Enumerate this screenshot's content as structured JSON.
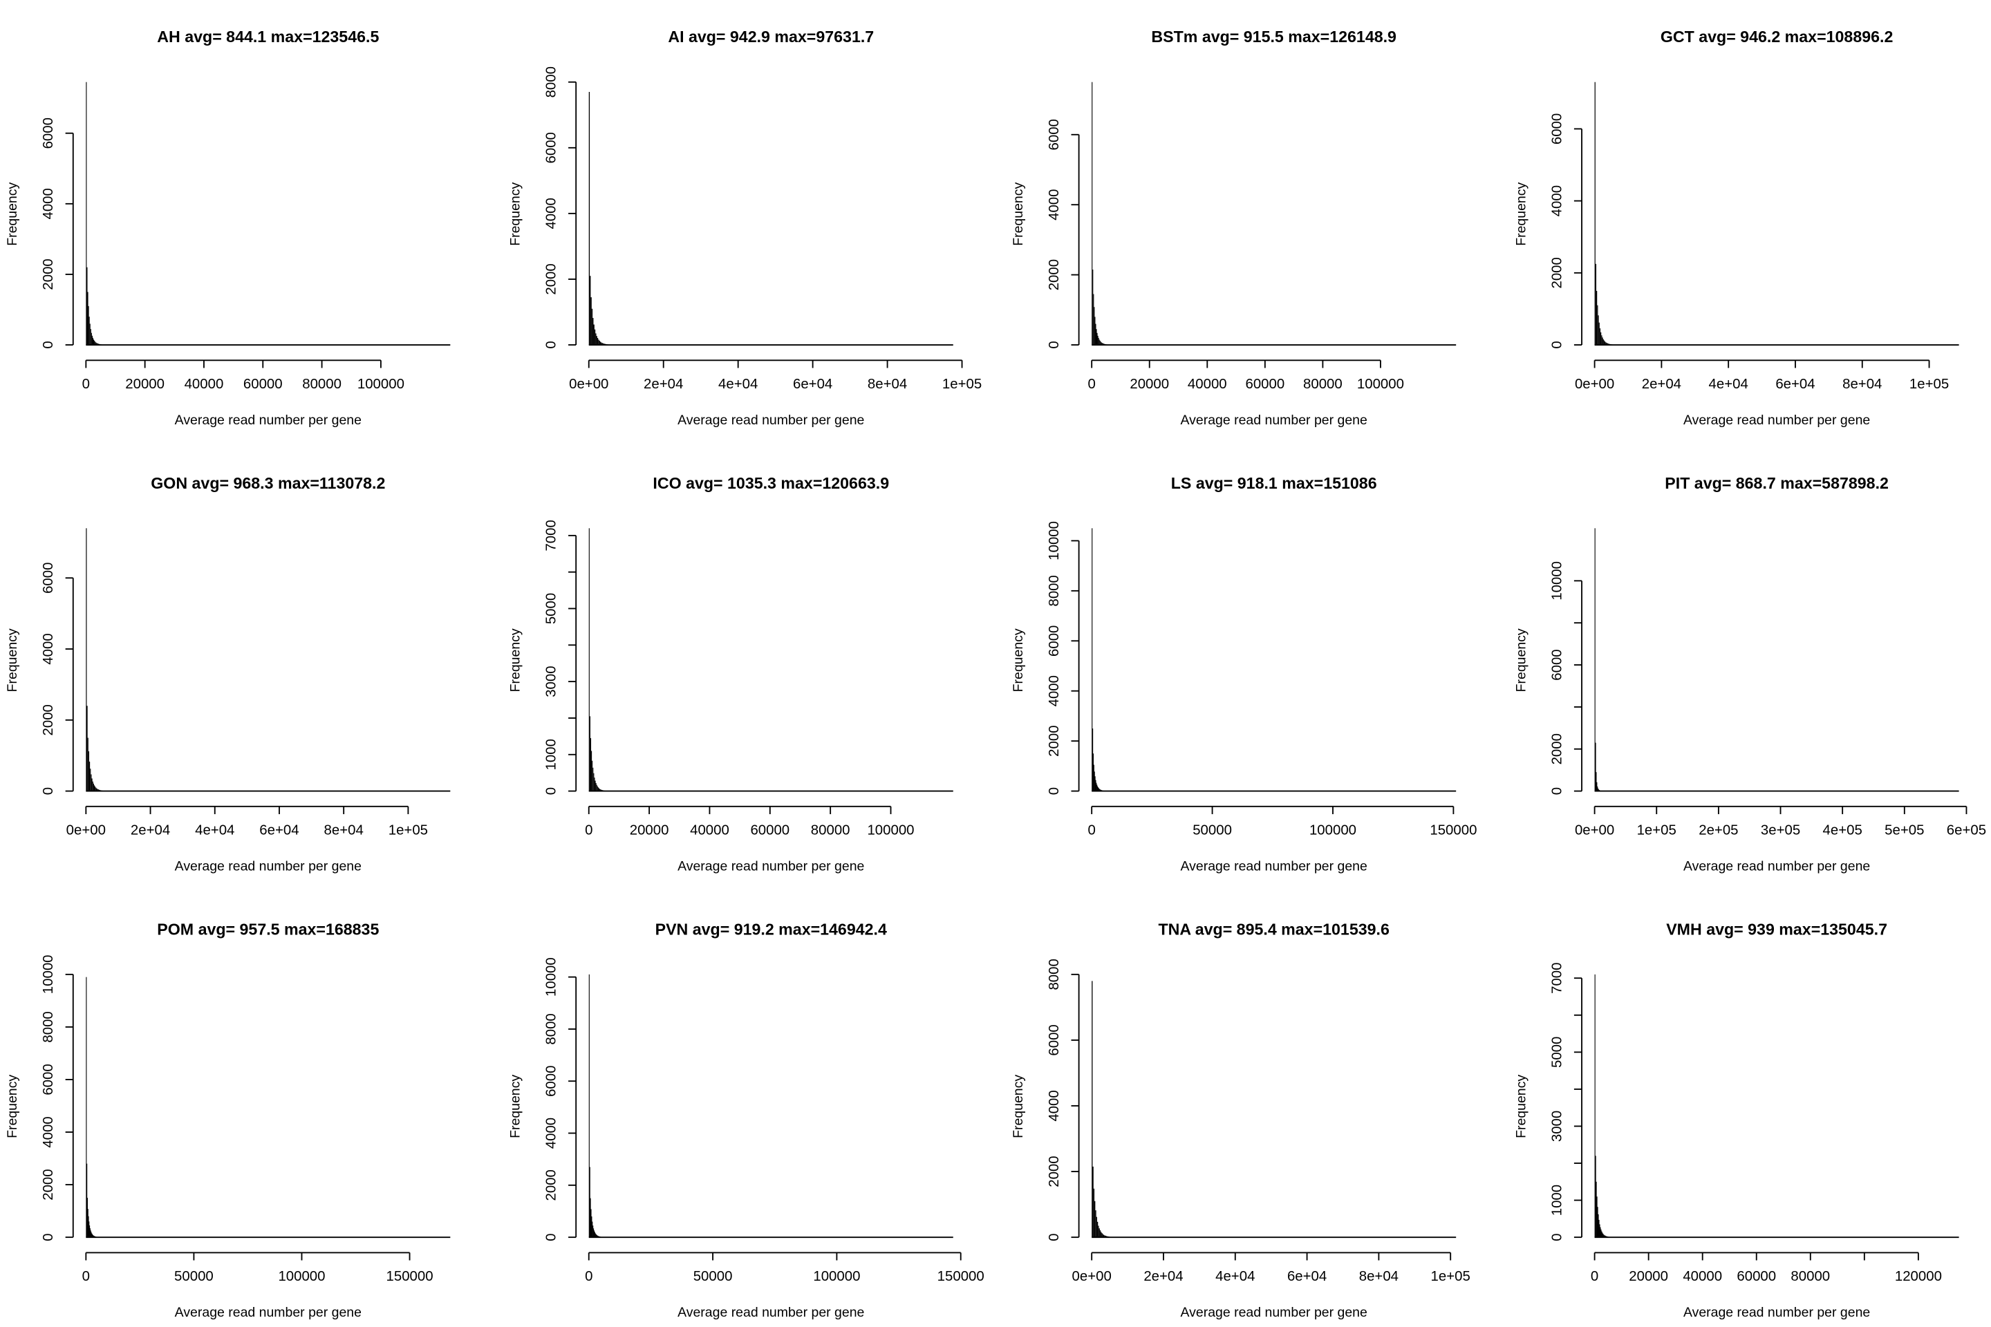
{
  "chart_data": [
    {
      "type": "bar",
      "title": "AH avg= 844.1 max=123546.5",
      "xlabel": "Average read number per gene",
      "ylabel": "Frequency",
      "xlim": [
        0,
        123546.5
      ],
      "bin_width": 250,
      "xticks": [
        0,
        20000,
        40000,
        60000,
        80000,
        100000
      ],
      "xtick_labels": [
        "0",
        "20000",
        "40000",
        "60000",
        "80000",
        "100000"
      ],
      "yticks": [
        0,
        2000,
        4000,
        6000
      ],
      "ytick_labels": [
        "0",
        "2000",
        "4000",
        "6000"
      ],
      "counts": [
        7450,
        2200,
        1500,
        1100,
        800,
        600,
        450,
        340,
        260,
        200,
        150,
        120,
        90,
        70,
        55,
        45,
        35,
        28,
        22,
        18,
        14,
        11,
        9,
        7,
        5,
        4,
        3,
        2,
        2,
        1
      ]
    },
    {
      "type": "bar",
      "title": "AI avg= 942.9 max=97631.7",
      "xlabel": "Average read number per gene",
      "ylabel": "Frequency",
      "xlim": [
        0,
        97631.7
      ],
      "bin_width": 250,
      "xticks": [
        0,
        20000,
        40000,
        60000,
        80000,
        100000
      ],
      "xtick_labels": [
        "0e+00",
        "2e+04",
        "4e+04",
        "6e+04",
        "8e+04",
        "1e+05"
      ],
      "yticks": [
        0,
        2000,
        4000,
        6000,
        8000
      ],
      "ytick_labels": [
        "0",
        "2000",
        "4000",
        "6000",
        "8000"
      ],
      "counts": [
        7700,
        2100,
        1450,
        1100,
        820,
        620,
        470,
        350,
        270,
        210,
        160,
        125,
        95,
        72,
        56,
        46,
        36,
        29,
        23,
        18,
        14,
        11,
        9,
        7,
        5,
        4,
        3,
        2,
        2,
        1
      ]
    },
    {
      "type": "bar",
      "title": "BSTm avg= 915.5 max=126148.9",
      "xlabel": "Average read number per gene",
      "ylabel": "Frequency",
      "xlim": [
        0,
        126148.9
      ],
      "bin_width": 250,
      "xticks": [
        0,
        20000,
        40000,
        60000,
        80000,
        100000
      ],
      "xtick_labels": [
        "0",
        "20000",
        "40000",
        "60000",
        "80000",
        "100000"
      ],
      "yticks": [
        0,
        2000,
        4000,
        6000
      ],
      "ytick_labels": [
        "0",
        "2000",
        "4000",
        "6000"
      ],
      "counts": [
        7500,
        2150,
        1450,
        1080,
        800,
        600,
        450,
        340,
        260,
        200,
        150,
        120,
        90,
        70,
        55,
        45,
        35,
        28,
        22,
        18,
        14,
        11,
        9,
        7,
        5,
        4,
        3,
        2,
        2,
        1
      ]
    },
    {
      "type": "bar",
      "title": "GCT avg= 946.2 max=108896.2",
      "xlabel": "Average read number per gene",
      "ylabel": "Frequency",
      "xlim": [
        0,
        108896.2
      ],
      "bin_width": 250,
      "xticks": [
        0,
        20000,
        40000,
        60000,
        80000,
        100000
      ],
      "xtick_labels": [
        "0e+00",
        "2e+04",
        "4e+04",
        "6e+04",
        "8e+04",
        "1e+05"
      ],
      "yticks": [
        0,
        2000,
        4000,
        6000
      ],
      "ytick_labels": [
        "0",
        "2000",
        "4000",
        "6000"
      ],
      "counts": [
        7300,
        2250,
        1500,
        1100,
        820,
        620,
        460,
        350,
        265,
        205,
        155,
        122,
        92,
        71,
        55,
        45,
        35,
        28,
        22,
        18,
        14,
        11,
        9,
        7,
        5,
        4,
        3,
        2,
        2,
        1
      ]
    },
    {
      "type": "bar",
      "title": "GON avg= 968.3 max=113078.2",
      "xlabel": "Average read number per gene",
      "ylabel": "Frequency",
      "xlim": [
        0,
        113078.2
      ],
      "bin_width": 250,
      "xticks": [
        0,
        20000,
        40000,
        60000,
        80000,
        100000
      ],
      "xtick_labels": [
        "0e+00",
        "2e+04",
        "4e+04",
        "6e+04",
        "8e+04",
        "1e+05"
      ],
      "yticks": [
        0,
        2000,
        4000,
        6000
      ],
      "ytick_labels": [
        "0",
        "2000",
        "4000",
        "6000"
      ],
      "counts": [
        7400,
        2400,
        1500,
        1120,
        830,
        630,
        470,
        355,
        270,
        210,
        160,
        125,
        95,
        72,
        56,
        46,
        36,
        29,
        23,
        18,
        14,
        11,
        9,
        7,
        5,
        4,
        3,
        2,
        2,
        1
      ]
    },
    {
      "type": "bar",
      "title": "ICO avg= 1035.3 max=120663.9",
      "xlabel": "Average read number per gene",
      "ylabel": "Frequency",
      "xlim": [
        0,
        120663.9
      ],
      "bin_width": 250,
      "xticks": [
        0,
        20000,
        40000,
        60000,
        80000,
        100000
      ],
      "xtick_labels": [
        "0",
        "20000",
        "40000",
        "60000",
        "80000",
        "100000"
      ],
      "yticks": [
        0,
        1000,
        2000,
        3000,
        4000,
        5000,
        6000,
        7000
      ],
      "ytick_labels": [
        "0",
        "1000",
        "",
        "3000",
        "",
        "5000",
        "",
        "7000"
      ],
      "counts": [
        7200,
        2050,
        1450,
        1100,
        830,
        640,
        490,
        370,
        285,
        220,
        170,
        130,
        100,
        76,
        58,
        47,
        37,
        30,
        24,
        19,
        15,
        12,
        9,
        7,
        5,
        4,
        3,
        2,
        2,
        1
      ]
    },
    {
      "type": "bar",
      "title": "LS avg= 918.1 max=151086",
      "xlabel": "Average read number per gene",
      "ylabel": "Frequency",
      "xlim": [
        0,
        151086
      ],
      "bin_width": 250,
      "xticks": [
        0,
        50000,
        100000,
        150000
      ],
      "xtick_labels": [
        "0",
        "50000",
        "100000",
        "150000"
      ],
      "yticks": [
        0,
        2000,
        4000,
        6000,
        8000,
        10000
      ],
      "ytick_labels": [
        "0",
        "2000",
        "4000",
        "6000",
        "8000",
        "10000"
      ],
      "counts": [
        10500,
        2500,
        1500,
        1050,
        780,
        590,
        440,
        330,
        255,
        195,
        150,
        118,
        90,
        70,
        55,
        45,
        35,
        28,
        22,
        18,
        14,
        11,
        9,
        7,
        5,
        4,
        3,
        2,
        2,
        1
      ]
    },
    {
      "type": "bar",
      "title": "PIT avg= 868.7 max=587898.2",
      "xlabel": "Average read number per gene",
      "ylabel": "Frequency",
      "xlim": [
        0,
        587898.2
      ],
      "bin_width": 1000,
      "xticks": [
        0,
        100000,
        200000,
        300000,
        400000,
        500000,
        600000
      ],
      "xtick_labels": [
        "0e+00",
        "1e+05",
        "2e+05",
        "3e+05",
        "4e+05",
        "5e+05",
        "6e+05"
      ],
      "yticks": [
        0,
        2000,
        4000,
        6000,
        8000,
        10000
      ],
      "ytick_labels": [
        "0",
        "2000",
        "",
        "6000",
        "",
        "10000"
      ],
      "counts": [
        12500,
        2300,
        900,
        420,
        220,
        130,
        80,
        50,
        32,
        22,
        15,
        10,
        7,
        5,
        3,
        2,
        1
      ]
    },
    {
      "type": "bar",
      "title": "POM avg= 957.5 max=168835",
      "xlabel": "Average read number per gene",
      "ylabel": "Frequency",
      "xlim": [
        0,
        168835
      ],
      "bin_width": 250,
      "xticks": [
        0,
        50000,
        100000,
        150000
      ],
      "xtick_labels": [
        "0",
        "50000",
        "100000",
        "150000"
      ],
      "yticks": [
        0,
        2000,
        4000,
        6000,
        8000,
        10000
      ],
      "ytick_labels": [
        "0",
        "2000",
        "4000",
        "6000",
        "8000",
        "10000"
      ],
      "counts": [
        9900,
        2800,
        1500,
        1080,
        800,
        600,
        450,
        340,
        260,
        200,
        150,
        120,
        90,
        70,
        55,
        45,
        35,
        28,
        22,
        18,
        14,
        11,
        9,
        7,
        5,
        4,
        3,
        2,
        2,
        1
      ]
    },
    {
      "type": "bar",
      "title": "PVN avg= 919.2 max=146942.4",
      "xlabel": "Average read number per gene",
      "ylabel": "Frequency",
      "xlim": [
        0,
        146942.4
      ],
      "bin_width": 250,
      "xticks": [
        0,
        50000,
        100000,
        150000
      ],
      "xtick_labels": [
        "0",
        "50000",
        "100000",
        "150000"
      ],
      "yticks": [
        0,
        2000,
        4000,
        6000,
        8000,
        10000
      ],
      "ytick_labels": [
        "0",
        "2000",
        "4000",
        "6000",
        "8000",
        "10000"
      ],
      "counts": [
        10100,
        2700,
        1500,
        1080,
        800,
        600,
        450,
        340,
        260,
        200,
        150,
        120,
        90,
        70,
        55,
        45,
        35,
        28,
        22,
        18,
        14,
        11,
        9,
        7,
        5,
        4,
        3,
        2,
        2,
        1
      ]
    },
    {
      "type": "bar",
      "title": "TNA avg= 895.4 max=101539.6",
      "xlabel": "Average read number per gene",
      "ylabel": "Frequency",
      "xlim": [
        0,
        101539.6
      ],
      "bin_width": 250,
      "xticks": [
        0,
        20000,
        40000,
        60000,
        80000,
        100000
      ],
      "xtick_labels": [
        "0e+00",
        "2e+04",
        "4e+04",
        "6e+04",
        "8e+04",
        "1e+05"
      ],
      "yticks": [
        0,
        2000,
        4000,
        6000,
        8000
      ],
      "ytick_labels": [
        "0",
        "2000",
        "4000",
        "6000",
        "8000"
      ],
      "counts": [
        7800,
        2150,
        1480,
        1100,
        820,
        620,
        470,
        350,
        270,
        210,
        160,
        125,
        95,
        72,
        56,
        46,
        36,
        29,
        23,
        18,
        14,
        11,
        9,
        7,
        5,
        4,
        3,
        2,
        2,
        1
      ]
    },
    {
      "type": "bar",
      "title": "VMH avg= 939 max=135045.7",
      "xlabel": "Average read number per gene",
      "ylabel": "Frequency",
      "xlim": [
        0,
        135045.7
      ],
      "bin_width": 250,
      "xticks": [
        0,
        20000,
        40000,
        60000,
        80000,
        100000,
        120000
      ],
      "xtick_labels": [
        "0",
        "20000",
        "40000",
        "60000",
        "80000",
        "",
        "120000"
      ],
      "yticks": [
        0,
        1000,
        2000,
        3000,
        4000,
        5000,
        6000,
        7000
      ],
      "ytick_labels": [
        "0",
        "1000",
        "",
        "3000",
        "",
        "5000",
        "",
        "7000"
      ],
      "counts": [
        7100,
        2200,
        1500,
        1100,
        820,
        620,
        470,
        350,
        270,
        210,
        160,
        125,
        95,
        72,
        56,
        46,
        36,
        29,
        23,
        18,
        14,
        11,
        9,
        7,
        5,
        4,
        3,
        2,
        2,
        1
      ]
    }
  ],
  "colors": {
    "bars": "#000000",
    "background": "#ffffff"
  }
}
